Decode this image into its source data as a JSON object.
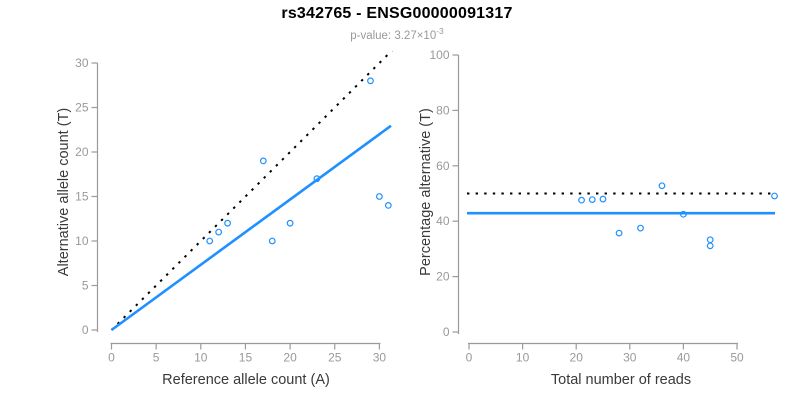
{
  "header": {
    "title": "rs342765 - ENSG00000091317",
    "p_value_prefix": "p-value: 3.27×10",
    "p_value_exponent": "-3"
  },
  "colors": {
    "accent_blue": "#1E90FF",
    "dotted_line": "#000000",
    "axis_gray": "#9A9A9A",
    "tick_text": "#999999",
    "axis_label_color": "#3a3a3a",
    "subtitle_gray": "#999999"
  },
  "chart_data": [
    {
      "id": "allele-count-scatter",
      "type": "scatter",
      "xlabel": "Reference allele count (A)",
      "ylabel": "Alternative allele count (T)",
      "xlim": [
        0,
        31.5
      ],
      "ylim": [
        0,
        31
      ],
      "xticks": [
        0,
        5,
        10,
        15,
        20,
        25,
        30
      ],
      "yticks": [
        0,
        5,
        10,
        15,
        20,
        25,
        30
      ],
      "grid": false,
      "points": [
        [
          11,
          10
        ],
        [
          12,
          11
        ],
        [
          13,
          12
        ],
        [
          17,
          19
        ],
        [
          18,
          10
        ],
        [
          20,
          12
        ],
        [
          23,
          17
        ],
        [
          29,
          28
        ],
        [
          30,
          15
        ],
        [
          31,
          14
        ]
      ],
      "lines": [
        {
          "name": "identity-line",
          "style": "dotted",
          "color_key": "dotted_line",
          "from": [
            0,
            0
          ],
          "to": [
            32,
            32
          ]
        },
        {
          "name": "regression-line",
          "style": "solid",
          "color_key": "accent_blue",
          "from": [
            0,
            0
          ],
          "to": [
            31.3,
            22.95
          ]
        }
      ]
    },
    {
      "id": "percentage-scatter",
      "type": "scatter",
      "xlabel": "Total number of reads",
      "ylabel": "Percentage alternative (T)",
      "xlim": [
        0,
        57.5
      ],
      "ylim": [
        0,
        100
      ],
      "xticks": [
        0,
        10,
        20,
        30,
        40,
        50
      ],
      "yticks": [
        0,
        20,
        40,
        60,
        80,
        100
      ],
      "grid": false,
      "points": [
        [
          21,
          47.6
        ],
        [
          23,
          47.8
        ],
        [
          25,
          48.0
        ],
        [
          28,
          35.7
        ],
        [
          32,
          37.5
        ],
        [
          36,
          52.8
        ],
        [
          40,
          42.5
        ],
        [
          45,
          33.3
        ],
        [
          45,
          31.1
        ],
        [
          57,
          49.1
        ]
      ],
      "lines": [
        {
          "name": "expected-50pct-line",
          "style": "dotted",
          "color_key": "dotted_line",
          "hline": 50
        },
        {
          "name": "observed-pct-line",
          "style": "solid",
          "color_key": "accent_blue",
          "hline": 42.9
        }
      ]
    }
  ]
}
